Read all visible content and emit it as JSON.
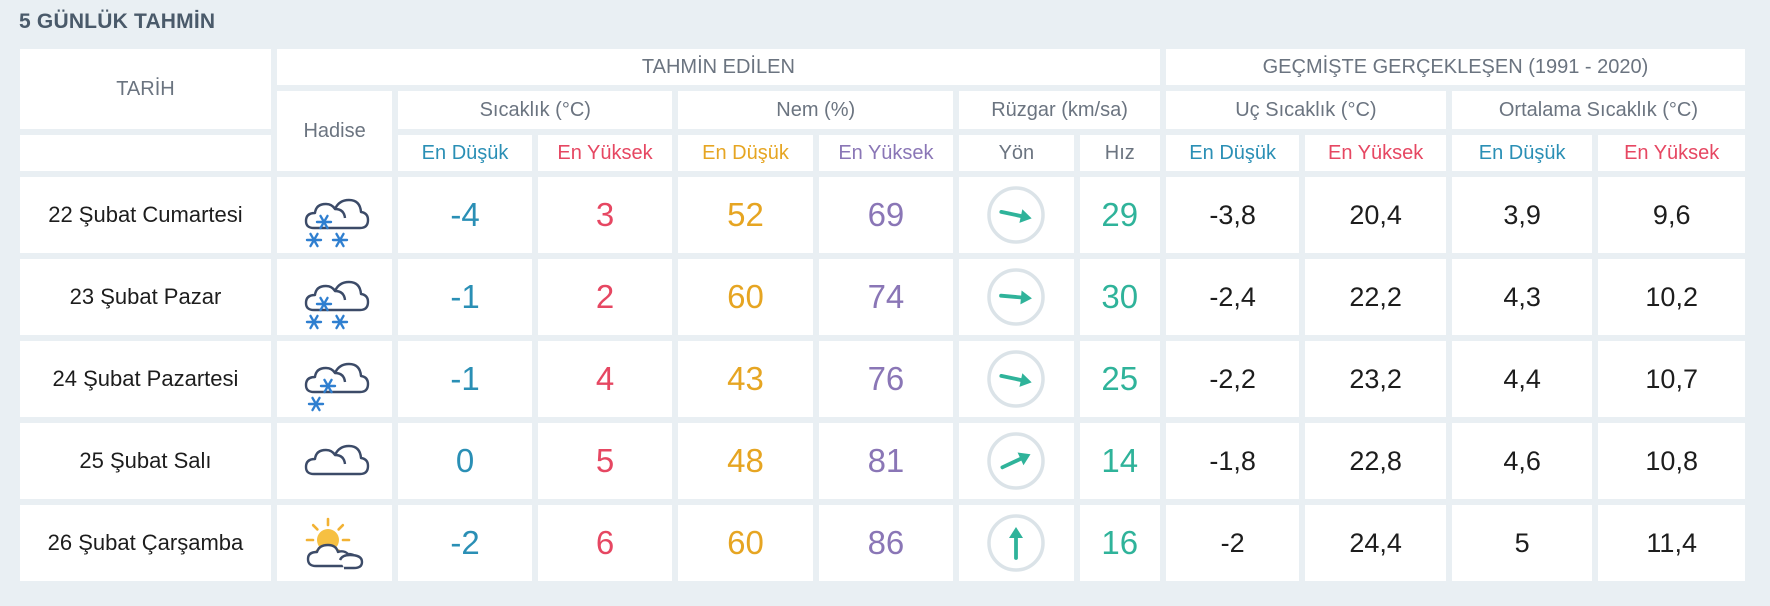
{
  "title": "5 GÜNLÜK TAHMİN",
  "headers": {
    "tarih": "TARİH",
    "forecast_group": "TAHMİN EDİLEN",
    "history_group": "GEÇMİŞTE GERÇEKLEŞEN (1991 - 2020)",
    "hadise": "Hadise",
    "temp": "Sıcaklık (°C)",
    "humidity": "Nem (%)",
    "wind": "Rüzgar (km/sa)",
    "extreme_temp": "Uç Sıcaklık (°C)",
    "avg_temp": "Ortalama Sıcaklık (°C)",
    "min": "En Düşük",
    "max": "En Yüksek",
    "direction": "Yön",
    "speed": "Hız"
  },
  "colors": {
    "low": "#2a8fb5",
    "high": "#e64762",
    "hum_low": "#e6a522",
    "hum_high": "#8a76b6",
    "speed": "#2fb39a"
  },
  "rows": [
    {
      "date": "22 Şubat Cumartesi",
      "icon": "snow-cloud-icon",
      "temp_min": "-4",
      "temp_max": "3",
      "hum_min": "52",
      "hum_max": "69",
      "wind_icon": "wind-direction-east-southeast-icon",
      "wind_speed": "29",
      "ext_min": "-3,8",
      "ext_max": "20,4",
      "avg_min": "3,9",
      "avg_max": "9,6"
    },
    {
      "date": "23 Şubat Pazar",
      "icon": "snow-cloud-icon",
      "temp_min": "-1",
      "temp_max": "2",
      "hum_min": "60",
      "hum_max": "74",
      "wind_icon": "wind-direction-east-icon",
      "wind_speed": "30",
      "ext_min": "-2,4",
      "ext_max": "22,2",
      "avg_min": "4,3",
      "avg_max": "10,2"
    },
    {
      "date": "24 Şubat Pazartesi",
      "icon": "light-snow-cloud-icon",
      "temp_min": "-1",
      "temp_max": "4",
      "hum_min": "43",
      "hum_max": "76",
      "wind_icon": "wind-direction-east-southeast-icon",
      "wind_speed": "25",
      "ext_min": "-2,2",
      "ext_max": "23,2",
      "avg_min": "4,4",
      "avg_max": "10,7"
    },
    {
      "date": "25 Şubat Salı",
      "icon": "cloudy-icon",
      "temp_min": "0",
      "temp_max": "5",
      "hum_min": "48",
      "hum_max": "81",
      "wind_icon": "wind-direction-northeast-icon",
      "wind_speed": "14",
      "ext_min": "-1,8",
      "ext_max": "22,8",
      "avg_min": "4,6",
      "avg_max": "10,8"
    },
    {
      "date": "26 Şubat Çarşamba",
      "icon": "partly-cloudy-icon",
      "temp_min": "-2",
      "temp_max": "6",
      "hum_min": "60",
      "hum_max": "86",
      "wind_icon": "wind-direction-north-icon",
      "wind_speed": "16",
      "ext_min": "-2",
      "ext_max": "24,4",
      "avg_min": "5",
      "avg_max": "11,4"
    }
  ]
}
